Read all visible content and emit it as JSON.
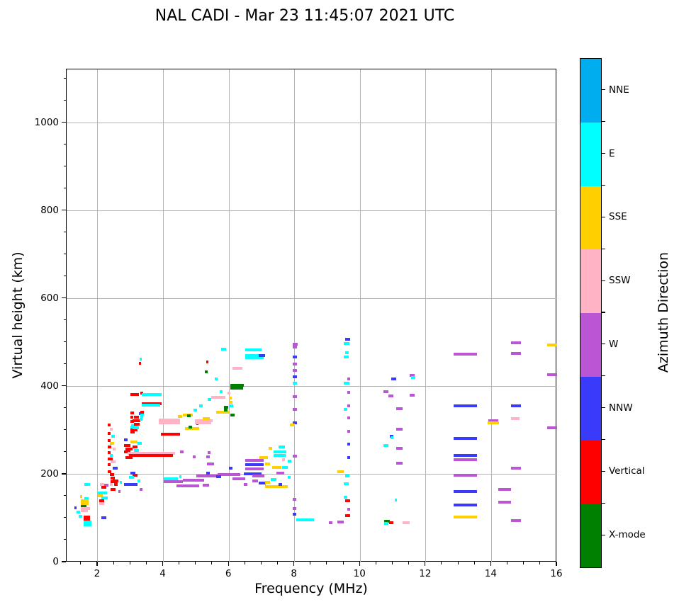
{
  "chart_data": {
    "type": "scatter",
    "title": "NAL CADI - Mar 23 11:45:07 2021 UTC",
    "xlabel": "Frequency (MHz)",
    "ylabel": "Virtual height (km)",
    "xlim": [
      1.05,
      16
    ],
    "ylim": [
      0,
      1122
    ],
    "xticks": [
      2,
      4,
      6,
      8,
      10,
      12,
      14,
      16
    ],
    "yticks": [
      0,
      200,
      400,
      600,
      800,
      1000
    ],
    "x_minor_step": 0.5,
    "y_minor_step": 50,
    "grid": true,
    "legend_position": "right-colorbar",
    "colorbar": {
      "title": "Azimuth Direction",
      "categories": [
        {
          "label": "NNE",
          "color": "#00AEEF"
        },
        {
          "label": "E",
          "color": "#00FFFF"
        },
        {
          "label": "SSE",
          "color": "#FFD000"
        },
        {
          "label": "SSW",
          "color": "#FFB3C4"
        },
        {
          "label": "W",
          "color": "#BA55D3"
        },
        {
          "label": "NNW",
          "color": "#3A3AFA"
        },
        {
          "label": "Vertical",
          "color": "#FF0000"
        },
        {
          "label": "X-mode",
          "color": "#008000"
        }
      ]
    },
    "palette_keys": {
      "NNE": "#00AEEF",
      "E": "#00FFFF",
      "SSE": "#FFD000",
      "SSW": "#FFB3C4",
      "W": "#BA55D3",
      "NNW": "#3A3AFA",
      "V": "#FF0000",
      "X": "#008000"
    },
    "key_legend": {
      "NNE": "NNE",
      "E": "E",
      "SSE": "SSE",
      "SSW": "SSW",
      "W": "W",
      "NNW": "NNW",
      "V": "Vertical",
      "X": "X-mode"
    },
    "points_format": [
      "freq_start_MHz",
      "freq_end_MHz",
      "virtual_height_km",
      "azimuth_key"
    ],
    "points": [
      [
        1.59,
        1.76,
        177,
        "E"
      ],
      [
        1.6,
        1.73,
        145,
        "E"
      ],
      [
        1.48,
        1.72,
        140,
        "SSE"
      ],
      [
        1.48,
        1.72,
        133,
        "SSE"
      ],
      [
        1.48,
        1.65,
        128,
        "X"
      ],
      [
        1.48,
        1.76,
        123,
        "SSW"
      ],
      [
        1.48,
        1.7,
        117,
        "SSW"
      ],
      [
        1.35,
        1.46,
        114,
        "E"
      ],
      [
        1.28,
        1.34,
        124,
        "NNW"
      ],
      [
        1.41,
        1.52,
        104,
        "E"
      ],
      [
        1.57,
        1.76,
        103,
        "V"
      ],
      [
        1.57,
        1.76,
        97,
        "V"
      ],
      [
        1.57,
        1.8,
        92,
        "E"
      ],
      [
        1.57,
        1.8,
        86,
        "E"
      ],
      [
        1.45,
        1.52,
        150,
        "SSE"
      ],
      [
        2.07,
        2.2,
        177,
        "SSW"
      ],
      [
        2.2,
        2.32,
        176,
        "W"
      ],
      [
        2.1,
        2.25,
        171,
        "V"
      ],
      [
        2.0,
        2.15,
        152,
        "SSE"
      ],
      [
        2.1,
        2.3,
        147,
        "E"
      ],
      [
        2.05,
        2.2,
        141,
        "V"
      ],
      [
        2.05,
        2.2,
        133,
        "SSW"
      ],
      [
        2.1,
        2.25,
        102,
        "NNW"
      ],
      [
        2.5,
        2.6,
        177,
        "V"
      ],
      [
        2.67,
        2.73,
        182,
        "E"
      ],
      [
        2.62,
        2.7,
        162,
        "W"
      ],
      [
        2.0,
        2.28,
        158,
        "E"
      ],
      [
        2.3,
        2.4,
        312,
        "V"
      ],
      [
        2.36,
        2.46,
        303,
        "SSW"
      ],
      [
        2.3,
        2.38,
        294,
        "V"
      ],
      [
        2.42,
        2.52,
        287,
        "E"
      ],
      [
        2.3,
        2.4,
        278,
        "V"
      ],
      [
        2.36,
        2.5,
        271,
        "SSE"
      ],
      [
        2.3,
        2.42,
        263,
        "V"
      ],
      [
        2.45,
        2.55,
        258,
        "SSW"
      ],
      [
        2.3,
        2.4,
        250,
        "V"
      ],
      [
        2.36,
        2.46,
        243,
        "E"
      ],
      [
        2.3,
        2.45,
        236,
        "V"
      ],
      [
        2.4,
        2.55,
        229,
        "SSW"
      ],
      [
        2.3,
        2.4,
        222,
        "V"
      ],
      [
        2.45,
        2.6,
        215,
        "NNW"
      ],
      [
        2.3,
        2.42,
        207,
        "V"
      ],
      [
        2.36,
        2.5,
        200,
        "V"
      ],
      [
        2.4,
        2.52,
        192,
        "V"
      ],
      [
        2.45,
        2.62,
        185,
        "V"
      ],
      [
        2.36,
        2.45,
        177,
        "SSW"
      ],
      [
        2.4,
        2.55,
        166,
        "V"
      ],
      [
        3.0,
        3.1,
        340,
        "V"
      ],
      [
        3.0,
        3.08,
        331,
        "V"
      ],
      [
        3.25,
        3.33,
        338,
        "NNW"
      ],
      [
        3.3,
        3.38,
        332,
        "E"
      ],
      [
        3.0,
        3.1,
        320,
        "V"
      ],
      [
        3.02,
        3.1,
        311,
        "E"
      ],
      [
        3.0,
        3.12,
        296,
        "V"
      ],
      [
        3.0,
        3.2,
        308,
        "E"
      ],
      [
        3.0,
        3.22,
        302,
        "V"
      ],
      [
        2.8,
        2.9,
        279,
        "NNW"
      ],
      [
        3.0,
        3.2,
        274,
        "SSE"
      ],
      [
        3.2,
        3.35,
        271,
        "E"
      ],
      [
        2.8,
        3.0,
        266,
        "V"
      ],
      [
        3.05,
        3.2,
        263,
        "V"
      ],
      [
        2.85,
        3.05,
        258,
        "V"
      ],
      [
        3.1,
        3.25,
        255,
        "E"
      ],
      [
        2.8,
        3.0,
        251,
        "V"
      ],
      [
        2.9,
        3.1,
        247,
        "SSW"
      ],
      [
        2.85,
        3.05,
        238,
        "V"
      ],
      [
        3.0,
        3.15,
        203,
        "NNW"
      ],
      [
        3.05,
        3.2,
        198,
        "V"
      ],
      [
        2.95,
        3.1,
        193,
        "E"
      ],
      [
        2.8,
        3.2,
        177,
        "NNW"
      ],
      [
        3.22,
        3.3,
        185,
        "E"
      ],
      [
        2.4,
        2.6,
        184,
        "V"
      ],
      [
        3.28,
        3.36,
        166,
        "W"
      ],
      [
        2.9,
        4.35,
        248,
        "SSW"
      ],
      [
        2.95,
        4.3,
        243,
        "V"
      ],
      [
        3.85,
        4.5,
        324,
        "SSW"
      ],
      [
        3.85,
        4.5,
        318,
        "SSW"
      ],
      [
        3.92,
        4.5,
        291,
        "V"
      ],
      [
        3.0,
        3.26,
        382,
        "V"
      ],
      [
        3.3,
        3.38,
        385,
        "V"
      ],
      [
        3.35,
        3.95,
        382,
        "E"
      ],
      [
        3.35,
        3.95,
        361,
        "V"
      ],
      [
        3.35,
        3.9,
        358,
        "E"
      ],
      [
        3.27,
        3.34,
        462,
        "E"
      ],
      [
        3.25,
        3.32,
        453,
        "V"
      ],
      [
        3.1,
        3.25,
        330,
        "V"
      ],
      [
        3.05,
        3.3,
        322,
        "V"
      ],
      [
        3.1,
        3.28,
        315,
        "V"
      ],
      [
        3.3,
        3.4,
        337,
        "E"
      ],
      [
        3.28,
        3.36,
        325,
        "E"
      ],
      [
        3.3,
        3.4,
        342,
        "V"
      ],
      [
        3.05,
        3.25,
        306,
        "E"
      ],
      [
        4.45,
        4.57,
        332,
        "SSE"
      ],
      [
        4.6,
        4.9,
        336,
        "SSE"
      ],
      [
        4.72,
        4.82,
        333,
        "X"
      ],
      [
        4.92,
        5.02,
        347,
        "E"
      ],
      [
        4.65,
        5.1,
        305,
        "SSE"
      ],
      [
        4.77,
        4.88,
        308,
        "X"
      ],
      [
        5.0,
        5.06,
        316,
        "V"
      ],
      [
        4.97,
        5.5,
        322,
        "SSW"
      ],
      [
        4.97,
        5.45,
        317,
        "SSW"
      ],
      [
        5.2,
        5.42,
        327,
        "SSE"
      ],
      [
        5.6,
        6.0,
        341,
        "SSE"
      ],
      [
        5.85,
        5.97,
        353,
        "X"
      ],
      [
        5.85,
        5.95,
        347,
        "X"
      ],
      [
        6.0,
        6.1,
        364,
        "SSE"
      ],
      [
        5.95,
        6.05,
        385,
        "SSW"
      ],
      [
        6.0,
        6.08,
        374,
        "SSE"
      ],
      [
        6.05,
        6.18,
        335,
        "X"
      ],
      [
        6.02,
        6.12,
        356,
        "E"
      ],
      [
        5.72,
        5.78,
        389,
        "E"
      ],
      [
        5.1,
        5.2,
        356,
        "E"
      ],
      [
        5.35,
        5.45,
        371,
        "E"
      ],
      [
        5.45,
        5.9,
        375,
        "SSW"
      ],
      [
        4.48,
        4.56,
        195,
        "E"
      ],
      [
        6.05,
        6.45,
        403,
        "X"
      ],
      [
        6.05,
        6.42,
        397,
        "X"
      ],
      [
        6.1,
        6.4,
        442,
        "SSW"
      ],
      [
        6.5,
        7.0,
        484,
        "E"
      ],
      [
        6.5,
        7.1,
        471,
        "E"
      ],
      [
        6.5,
        7.05,
        466,
        "E"
      ],
      [
        6.9,
        7.1,
        470,
        "NNW"
      ],
      [
        5.75,
        5.92,
        486,
        "E"
      ],
      [
        5.3,
        5.37,
        456,
        "V"
      ],
      [
        5.27,
        5.34,
        434,
        "X"
      ],
      [
        5.57,
        5.63,
        417,
        "E"
      ],
      [
        4.0,
        4.45,
        190,
        "E"
      ],
      [
        4.0,
        4.6,
        183,
        "W"
      ],
      [
        4.4,
        5.1,
        174,
        "W"
      ],
      [
        4.6,
        5.25,
        187,
        "W"
      ],
      [
        5.0,
        5.65,
        197,
        "W"
      ],
      [
        5.2,
        5.4,
        176,
        "W"
      ],
      [
        5.65,
        6.35,
        200,
        "W"
      ],
      [
        6.1,
        6.5,
        190,
        "W"
      ],
      [
        6.5,
        7.05,
        232,
        "W"
      ],
      [
        6.5,
        7.05,
        222,
        "NNW"
      ],
      [
        6.5,
        7.05,
        212,
        "W"
      ],
      [
        6.45,
        7.0,
        202,
        "NNW"
      ],
      [
        6.7,
        7.08,
        197,
        "W"
      ],
      [
        6.9,
        7.12,
        181,
        "NNW"
      ],
      [
        6.7,
        6.88,
        186,
        "W"
      ],
      [
        5.3,
        5.42,
        203,
        "NNW"
      ],
      [
        5.6,
        5.75,
        195,
        "NNW"
      ],
      [
        6.0,
        6.1,
        215,
        "NNW"
      ],
      [
        5.32,
        5.55,
        224,
        "W"
      ],
      [
        5.3,
        5.42,
        240,
        "W"
      ],
      [
        4.9,
        4.97,
        240,
        "W"
      ],
      [
        4.5,
        4.62,
        252,
        "W"
      ],
      [
        5.35,
        5.42,
        250,
        "W"
      ],
      [
        6.45,
        6.55,
        178,
        "W"
      ],
      [
        7.2,
        7.32,
        260,
        "SSE"
      ],
      [
        7.5,
        7.7,
        262,
        "E"
      ],
      [
        7.35,
        7.75,
        252,
        "E"
      ],
      [
        7.35,
        7.72,
        243,
        "E"
      ],
      [
        6.92,
        7.18,
        238,
        "SSE"
      ],
      [
        7.62,
        7.7,
        234,
        "SSW"
      ],
      [
        7.78,
        7.9,
        231,
        "E"
      ],
      [
        7.1,
        7.25,
        224,
        "SSE"
      ],
      [
        7.32,
        7.6,
        216,
        "SSE"
      ],
      [
        7.62,
        7.78,
        216,
        "E"
      ],
      [
        7.28,
        7.45,
        188,
        "E"
      ],
      [
        7.8,
        7.88,
        193,
        "E"
      ],
      [
        7.45,
        7.68,
        203,
        "W"
      ],
      [
        7.1,
        7.78,
        172,
        "SSE"
      ],
      [
        7.1,
        7.25,
        182,
        "SSE"
      ],
      [
        7.52,
        7.62,
        177,
        "NNW"
      ],
      [
        7.95,
        8.1,
        497,
        "W"
      ],
      [
        7.95,
        8.08,
        490,
        "W"
      ],
      [
        7.95,
        8.08,
        468,
        "NNW"
      ],
      [
        7.95,
        8.08,
        452,
        "W"
      ],
      [
        7.95,
        8.08,
        437,
        "W"
      ],
      [
        7.95,
        8.08,
        422,
        "NNW"
      ],
      [
        7.95,
        8.08,
        408,
        "E"
      ],
      [
        7.95,
        8.08,
        377,
        "W"
      ],
      [
        7.95,
        8.08,
        348,
        "W"
      ],
      [
        7.95,
        8.08,
        318,
        "NNW"
      ],
      [
        7.85,
        8.0,
        313,
        "SSE"
      ],
      [
        7.95,
        8.08,
        242,
        "W"
      ],
      [
        7.95,
        8.05,
        143,
        "W"
      ],
      [
        7.95,
        8.05,
        123,
        "W"
      ],
      [
        7.95,
        8.05,
        110,
        "NNW"
      ],
      [
        8.05,
        8.6,
        97,
        "E"
      ],
      [
        9.55,
        9.7,
        508,
        "NNW"
      ],
      [
        9.5,
        9.68,
        498,
        "E"
      ],
      [
        9.55,
        9.65,
        477,
        "E"
      ],
      [
        9.5,
        9.65,
        468,
        "E"
      ],
      [
        9.6,
        9.7,
        418,
        "W"
      ],
      [
        9.5,
        9.68,
        408,
        "E"
      ],
      [
        9.6,
        9.7,
        387,
        "W"
      ],
      [
        9.6,
        9.7,
        356,
        "W"
      ],
      [
        9.5,
        9.6,
        348,
        "E"
      ],
      [
        9.6,
        9.7,
        329,
        "W"
      ],
      [
        9.6,
        9.7,
        298,
        "W"
      ],
      [
        9.6,
        9.7,
        269,
        "NNW"
      ],
      [
        9.6,
        9.7,
        239,
        "NNW"
      ],
      [
        9.3,
        9.5,
        206,
        "SSE"
      ],
      [
        9.55,
        9.68,
        197,
        "E"
      ],
      [
        9.5,
        9.65,
        179,
        "E"
      ],
      [
        9.5,
        9.6,
        148,
        "E"
      ],
      [
        9.55,
        9.7,
        140,
        "V"
      ],
      [
        9.6,
        9.7,
        121,
        "W"
      ],
      [
        9.55,
        9.7,
        106,
        "V"
      ],
      [
        9.3,
        9.5,
        92,
        "W"
      ],
      [
        9.05,
        9.15,
        90,
        "W"
      ],
      [
        10.95,
        11.1,
        418,
        "NNW"
      ],
      [
        11.5,
        11.65,
        425,
        "W"
      ],
      [
        11.55,
        11.68,
        420,
        "E"
      ],
      [
        10.7,
        10.85,
        389,
        "W"
      ],
      [
        10.85,
        11.0,
        379,
        "W"
      ],
      [
        11.5,
        11.65,
        380,
        "W"
      ],
      [
        11.1,
        11.3,
        350,
        "W"
      ],
      [
        11.1,
        11.3,
        303,
        "W"
      ],
      [
        10.9,
        11.0,
        287,
        "NNW"
      ],
      [
        10.92,
        11.02,
        283,
        "E"
      ],
      [
        10.7,
        10.85,
        266,
        "E"
      ],
      [
        11.1,
        11.3,
        260,
        "W"
      ],
      [
        11.1,
        11.3,
        225,
        "W"
      ],
      [
        11.05,
        11.12,
        142,
        "E"
      ],
      [
        10.72,
        10.9,
        93,
        "X"
      ],
      [
        10.72,
        10.85,
        89,
        "E"
      ],
      [
        10.88,
        11.02,
        90,
        "V"
      ],
      [
        11.3,
        11.5,
        90,
        "SSW"
      ],
      [
        12.85,
        13.55,
        474,
        "W"
      ],
      [
        12.85,
        13.55,
        356,
        "NNW"
      ],
      [
        12.85,
        13.55,
        282,
        "NNW"
      ],
      [
        12.85,
        13.55,
        243,
        "NNW"
      ],
      [
        12.85,
        13.55,
        234,
        "W"
      ],
      [
        12.85,
        13.55,
        198,
        "W"
      ],
      [
        12.85,
        13.55,
        161,
        "NNW"
      ],
      [
        12.85,
        13.55,
        130,
        "NNW"
      ],
      [
        12.85,
        13.55,
        103,
        "SSE"
      ],
      [
        13.9,
        14.2,
        322,
        "W"
      ],
      [
        13.88,
        14.22,
        318,
        "SSE"
      ],
      [
        14.2,
        14.6,
        166,
        "W"
      ],
      [
        14.2,
        14.6,
        137,
        "W"
      ],
      [
        14.6,
        14.9,
        500,
        "W"
      ],
      [
        14.6,
        14.9,
        476,
        "W"
      ],
      [
        14.6,
        14.9,
        356,
        "NNW"
      ],
      [
        14.6,
        14.85,
        327,
        "SSW"
      ],
      [
        14.6,
        14.9,
        215,
        "W"
      ],
      [
        14.6,
        14.9,
        95,
        "W"
      ],
      [
        15.7,
        16.0,
        495,
        "SSE"
      ],
      [
        15.7,
        16.0,
        427,
        "W"
      ],
      [
        15.7,
        16.0,
        306,
        "W"
      ]
    ]
  }
}
